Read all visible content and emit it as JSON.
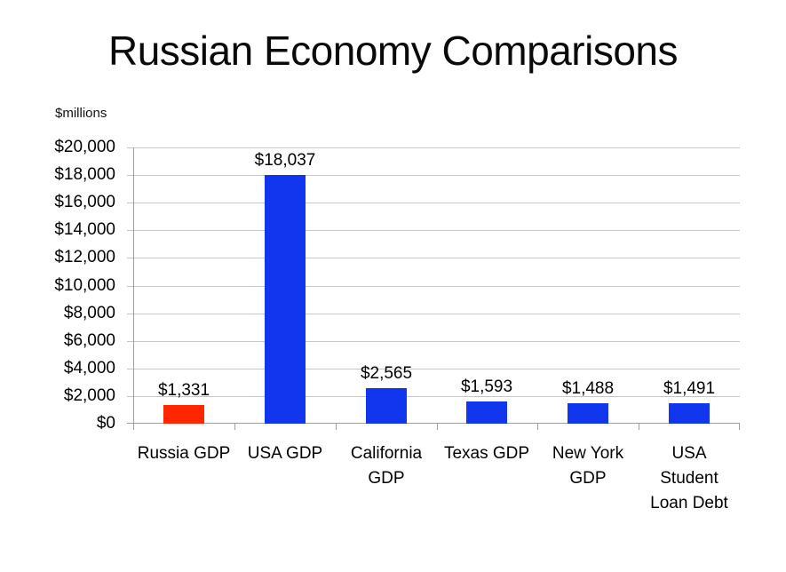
{
  "title": "Russian Economy Comparisons",
  "chart_data": {
    "type": "bar",
    "title": "Russian Economy Comparisons",
    "categories": [
      "Russia GDP",
      "USA GDP",
      "California GDP",
      "Texas GDP",
      "New York GDP",
      "USA Student Loan Debt"
    ],
    "values": [
      1331,
      18037,
      2565,
      1593,
      1488,
      1491
    ],
    "data_labels": [
      "$1,331",
      "$18,037",
      "$2,565",
      "$1,593",
      "$1,488",
      "$1,491"
    ],
    "bar_colors": [
      "#ff2600",
      "#1136ee",
      "#1136ee",
      "#1136ee",
      "#1136ee",
      "#1136ee"
    ],
    "xlabel": "",
    "ylabel": "$millions",
    "ylim": [
      0,
      20000
    ],
    "ytick_step": 2000,
    "y_tick_labels": [
      "$0",
      "$2,000",
      "$4,000",
      "$6,000",
      "$8,000",
      "$10,000",
      "$12,000",
      "$14,000",
      "$16,000",
      "$18,000",
      "$20,000"
    ],
    "grid": true,
    "legend_position": "none",
    "category_label_lines": [
      [
        "Russia GDP"
      ],
      [
        "USA GDP"
      ],
      [
        "California",
        "GDP"
      ],
      [
        "Texas GDP"
      ],
      [
        "New York",
        "GDP"
      ],
      [
        "USA",
        "Student",
        "Loan Debt"
      ]
    ]
  },
  "colors": {
    "gridline": "#c6c6c6",
    "axis": "#9e9e9e",
    "background": "#ffffff",
    "text": "#000000",
    "russia_bar": "#ff2600",
    "default_bar": "#1136ee"
  }
}
